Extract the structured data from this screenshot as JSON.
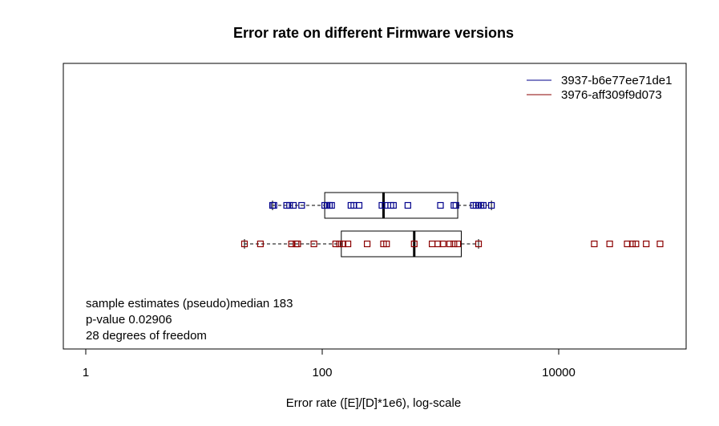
{
  "chart_data": {
    "type": "boxplot",
    "title": "Error rate on different Firmware versions",
    "xlabel": "Error rate ([E]/[D]*1e6), log-scale",
    "ylabel": "",
    "xscale": "log",
    "xlim": [
      1,
      70000
    ],
    "xticks": [
      {
        "value": 1,
        "label": "1"
      },
      {
        "value": 100,
        "label": "100"
      },
      {
        "value": 10000,
        "label": "10000"
      }
    ],
    "grid": false,
    "legend_position": "top-right",
    "series": [
      {
        "name": "3937-b6e77ee71de1",
        "color": "#00008B",
        "box": {
          "whisker_low": 38,
          "q1": 105,
          "median": 330,
          "q3": 1400,
          "whisker_high": 2700
        },
        "points": [
          38,
          39,
          50,
          53,
          57,
          67,
          105,
          110,
          115,
          120,
          175,
          185,
          205,
          320,
          340,
          380,
          400,
          530,
          1000,
          1300,
          1350,
          1900,
          2000,
          2100,
          2200,
          2300,
          2700
        ]
      },
      {
        "name": "3976-aff309f9d073",
        "color": "#8B0000",
        "box": {
          "whisker_low": 22,
          "q1": 145,
          "median": 600,
          "q3": 1500,
          "whisker_high": 2100
        },
        "points": [
          22,
          30,
          55,
          60,
          62,
          85,
          130,
          140,
          150,
          165,
          240,
          330,
          350,
          600,
          850,
          950,
          1050,
          1200,
          1300,
          1400,
          2100,
          20000,
          27000,
          38000,
          42000,
          45000,
          55000,
          72000
        ]
      }
    ],
    "annotations": [
      "sample estimates (pseudo)median 183",
      "p-value 0.02906",
      "28 degrees of freedom"
    ]
  }
}
